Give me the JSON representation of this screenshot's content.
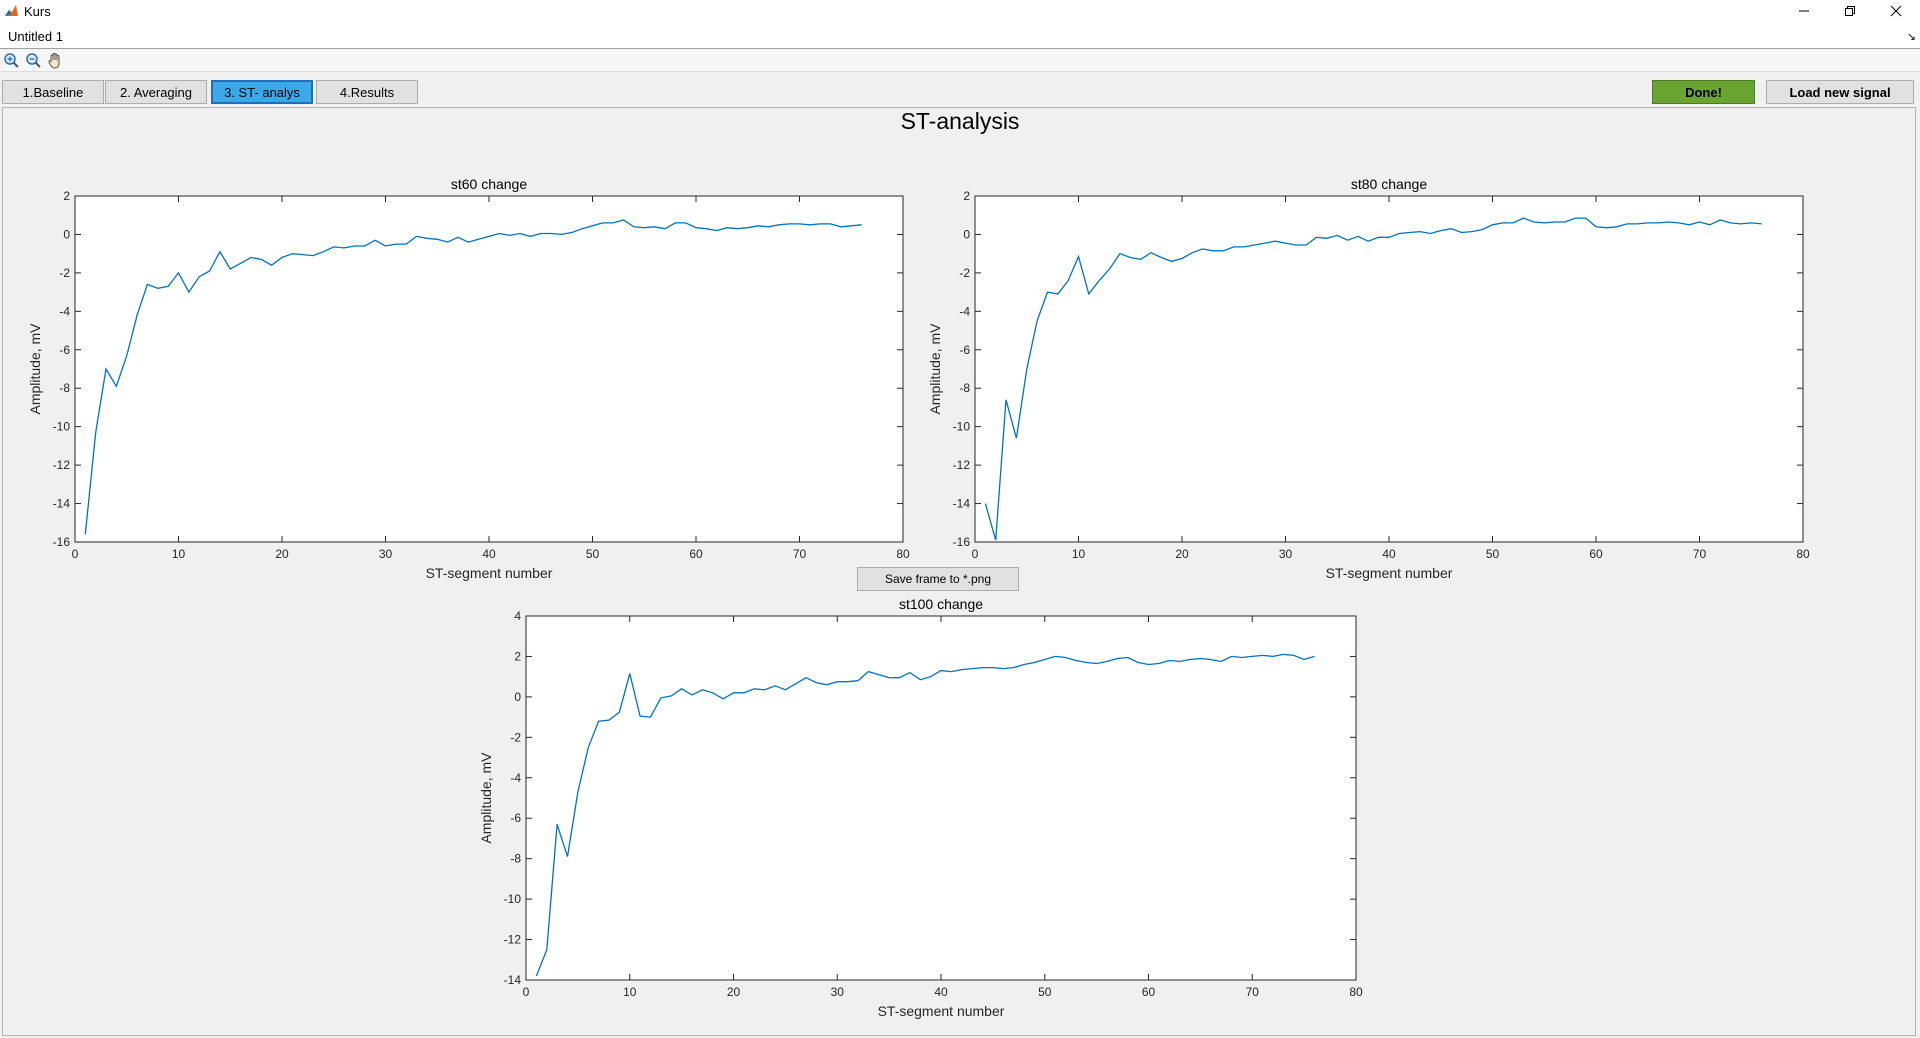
{
  "window": {
    "title": "Kurs",
    "document_title": "Untitled 1",
    "minimize_icon": "minimize-icon",
    "restore_icon": "restore-icon",
    "close_icon": "close-icon"
  },
  "toolbar": {
    "icons": [
      "zoom-in-icon",
      "zoom-out-icon",
      "pan-icon"
    ]
  },
  "tabs": [
    {
      "label": "1.Baseline",
      "active": false
    },
    {
      "label": "2. Averaging",
      "active": false
    },
    {
      "label": "3. ST- analys",
      "active": true
    },
    {
      "label": "4.Results",
      "active": false
    }
  ],
  "actions": {
    "done_label": "Done!",
    "load_label": "Load new signal",
    "save_label": "Save frame to *.png"
  },
  "colors": {
    "done_button": "#6aa531",
    "active_tab": "#3aa9ea",
    "line": "#0072bd"
  },
  "page_title": "ST-analysis",
  "chart_data": [
    {
      "type": "line",
      "title": "st60 change",
      "xlabel": "ST-segment number",
      "ylabel": "Amplitude, mV",
      "xlim": [
        0,
        80
      ],
      "ylim": [
        -16,
        2
      ],
      "xticks": [
        "0",
        "10",
        "20",
        "30",
        "40",
        "50",
        "60",
        "70",
        "80"
      ],
      "yticks": [
        "-16",
        "-14",
        "-12",
        "-10",
        "-8",
        "-6",
        "-4",
        "-2",
        "0",
        "2"
      ],
      "x": [
        1,
        2,
        3,
        4,
        5,
        6,
        7,
        8,
        9,
        10,
        11,
        12,
        13,
        14,
        15,
        16,
        17,
        18,
        19,
        20,
        21,
        22,
        23,
        24,
        25,
        26,
        27,
        28,
        29,
        30,
        31,
        32,
        33,
        34,
        35,
        36,
        37,
        38,
        39,
        40,
        41,
        42,
        43,
        44,
        45,
        46,
        47,
        48,
        49,
        50,
        51,
        52,
        53,
        54,
        55,
        56,
        57,
        58,
        59,
        60,
        61,
        62,
        63,
        64,
        65,
        66,
        67,
        68,
        69,
        70,
        71,
        72,
        73,
        74,
        75,
        76
      ],
      "y": [
        -15.6,
        -10.3,
        -7.0,
        -7.9,
        -6.3,
        -4.2,
        -2.6,
        -2.8,
        -2.7,
        -2.0,
        -3.0,
        -2.2,
        -1.9,
        -0.9,
        -1.8,
        -1.5,
        -1.2,
        -1.3,
        -1.6,
        -1.2,
        -1.0,
        -1.05,
        -1.1,
        -0.9,
        -0.65,
        -0.7,
        -0.6,
        -0.6,
        -0.3,
        -0.6,
        -0.5,
        -0.5,
        -0.1,
        -0.2,
        -0.25,
        -0.4,
        -0.15,
        -0.4,
        -0.25,
        -0.1,
        0.05,
        -0.05,
        0.05,
        -0.1,
        0.05,
        0.05,
        0.0,
        0.1,
        0.3,
        0.45,
        0.6,
        0.6,
        0.75,
        0.4,
        0.35,
        0.4,
        0.3,
        0.6,
        0.6,
        0.35,
        0.3,
        0.2,
        0.35,
        0.3,
        0.35,
        0.45,
        0.4,
        0.5,
        0.55,
        0.55,
        0.5,
        0.55,
        0.55,
        0.4,
        0.45,
        0.5
      ]
    },
    {
      "type": "line",
      "title": "st80 change",
      "xlabel": "ST-segment number",
      "ylabel": "Amplitude, mV",
      "xlim": [
        0,
        80
      ],
      "ylim": [
        -16,
        2
      ],
      "xticks": [
        "0",
        "10",
        "20",
        "30",
        "40",
        "50",
        "60",
        "70",
        "80"
      ],
      "yticks": [
        "-16",
        "-14",
        "-12",
        "-10",
        "-8",
        "-6",
        "-4",
        "-2",
        "0",
        "2"
      ],
      "x": [
        1,
        2,
        3,
        4,
        5,
        6,
        7,
        8,
        9,
        10,
        11,
        12,
        13,
        14,
        15,
        16,
        17,
        18,
        19,
        20,
        21,
        22,
        23,
        24,
        25,
        26,
        27,
        28,
        29,
        30,
        31,
        32,
        33,
        34,
        35,
        36,
        37,
        38,
        39,
        40,
        41,
        42,
        43,
        44,
        45,
        46,
        47,
        48,
        49,
        50,
        51,
        52,
        53,
        54,
        55,
        56,
        57,
        58,
        59,
        60,
        61,
        62,
        63,
        64,
        65,
        66,
        67,
        68,
        69,
        70,
        71,
        72,
        73,
        74,
        75,
        76
      ],
      "y": [
        -14.0,
        -15.9,
        -8.6,
        -10.6,
        -7.0,
        -4.5,
        -3.0,
        -3.1,
        -2.4,
        -1.15,
        -3.1,
        -2.4,
        -1.8,
        -1.0,
        -1.2,
        -1.3,
        -0.95,
        -1.2,
        -1.4,
        -1.25,
        -0.95,
        -0.75,
        -0.85,
        -0.85,
        -0.65,
        -0.65,
        -0.55,
        -0.45,
        -0.35,
        -0.45,
        -0.55,
        -0.55,
        -0.15,
        -0.2,
        -0.05,
        -0.3,
        -0.1,
        -0.35,
        -0.15,
        -0.15,
        0.05,
        0.1,
        0.15,
        0.05,
        0.2,
        0.3,
        0.1,
        0.15,
        0.25,
        0.5,
        0.6,
        0.6,
        0.85,
        0.65,
        0.6,
        0.65,
        0.65,
        0.85,
        0.85,
        0.4,
        0.35,
        0.4,
        0.55,
        0.55,
        0.6,
        0.6,
        0.65,
        0.6,
        0.5,
        0.65,
        0.5,
        0.75,
        0.6,
        0.55,
        0.6,
        0.55
      ]
    },
    {
      "type": "line",
      "title": "st100 change",
      "xlabel": "ST-segment number",
      "ylabel": "Amplitude, mV",
      "xlim": [
        0,
        80
      ],
      "ylim": [
        -14,
        4
      ],
      "xticks": [
        "0",
        "10",
        "20",
        "30",
        "40",
        "50",
        "60",
        "70",
        "80"
      ],
      "yticks": [
        "-14",
        "-12",
        "-10",
        "-8",
        "-6",
        "-4",
        "-2",
        "0",
        "2",
        "4"
      ],
      "x": [
        1,
        2,
        3,
        4,
        5,
        6,
        7,
        8,
        9,
        10,
        11,
        12,
        13,
        14,
        15,
        16,
        17,
        18,
        19,
        20,
        21,
        22,
        23,
        24,
        25,
        26,
        27,
        28,
        29,
        30,
        31,
        32,
        33,
        34,
        35,
        36,
        37,
        38,
        39,
        40,
        41,
        42,
        43,
        44,
        45,
        46,
        47,
        48,
        49,
        50,
        51,
        52,
        53,
        54,
        55,
        56,
        57,
        58,
        59,
        60,
        61,
        62,
        63,
        64,
        65,
        66,
        67,
        68,
        69,
        70,
        71,
        72,
        73,
        74,
        75,
        76
      ],
      "y": [
        -13.8,
        -12.5,
        -6.3,
        -7.9,
        -4.7,
        -2.5,
        -1.2,
        -1.15,
        -0.75,
        1.15,
        -0.95,
        -1.0,
        -0.05,
        0.05,
        0.4,
        0.1,
        0.35,
        0.2,
        -0.1,
        0.2,
        0.2,
        0.4,
        0.35,
        0.55,
        0.35,
        0.65,
        0.95,
        0.7,
        0.6,
        0.75,
        0.75,
        0.8,
        1.25,
        1.1,
        0.95,
        0.95,
        1.2,
        0.85,
        1.0,
        1.3,
        1.25,
        1.35,
        1.4,
        1.45,
        1.45,
        1.4,
        1.45,
        1.6,
        1.7,
        1.85,
        2.0,
        1.95,
        1.8,
        1.7,
        1.65,
        1.75,
        1.9,
        1.95,
        1.7,
        1.6,
        1.65,
        1.8,
        1.75,
        1.85,
        1.9,
        1.85,
        1.75,
        2.0,
        1.95,
        2.0,
        2.05,
        2.0,
        2.1,
        2.05,
        1.85,
        2.0
      ]
    }
  ]
}
